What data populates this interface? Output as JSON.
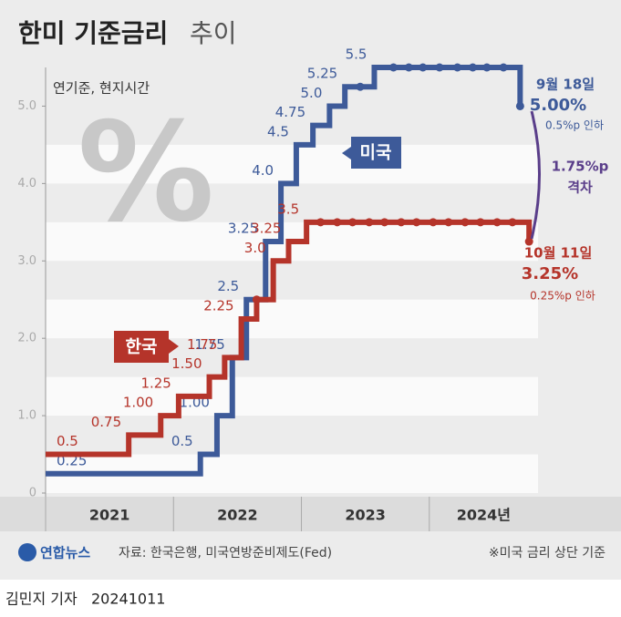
{
  "chart_data": {
    "type": "step",
    "title": "한미 기준금리",
    "title_suffix": "추이",
    "subtitle": "연기준, 현지시간",
    "watermark": "%",
    "xlim": [
      2021,
      2024.85
    ],
    "xticks": [
      2021,
      2022,
      2023,
      {
        "value": 2024,
        "label": "2024년"
      }
    ],
    "ylim": [
      0,
      5.5
    ],
    "yticks": [
      0,
      {
        "value": 1,
        "label": "1.0"
      },
      {
        "value": 2,
        "label": "2.0"
      },
      {
        "value": 3,
        "label": "3.0"
      },
      {
        "value": 4,
        "label": "4.0"
      },
      {
        "value": 5,
        "label": "5.0"
      }
    ],
    "series": [
      {
        "name": "미국",
        "color": "#3d5a99",
        "x": [
          2021,
          2022.21,
          2022.34,
          2022.46,
          2022.57,
          2022.72,
          2022.84,
          2022.96,
          2023.09,
          2023.22,
          2023.34,
          2023.46,
          2023.57,
          2023.72,
          2023.84,
          2023.95,
          2024.08,
          2024.22,
          2024.34,
          2024.45,
          2024.58,
          2024.71
        ],
        "values": [
          0.25,
          0.5,
          1,
          1.75,
          2.5,
          3.25,
          4,
          4.5,
          4.75,
          5,
          5.25,
          5.25,
          5.5,
          5.5,
          5.5,
          5.5,
          5.5,
          5.5,
          5.5,
          5.5,
          5.5,
          5
        ],
        "value_labels": [
          "0.25",
          "0.5",
          "1.00",
          "1.75",
          "2.5",
          "3.25",
          "4.0",
          "4.5",
          "4.75",
          "5.0",
          "5.25",
          null,
          "5.5",
          null,
          null,
          null,
          null,
          null,
          null,
          null,
          null,
          null
        ]
      },
      {
        "name": "한국",
        "color": "#b5342a",
        "x": [
          2021,
          2021.65,
          2021.9,
          2022.04,
          2022.28,
          2022.4,
          2022.53,
          2022.65,
          2022.78,
          2022.9,
          2023.04,
          2023.15,
          2023.28,
          2023.4,
          2023.53,
          2023.65,
          2023.78,
          2023.9,
          2024.03,
          2024.15,
          2024.28,
          2024.4,
          2024.53,
          2024.65,
          2024.78
        ],
        "values": [
          0.5,
          0.75,
          1,
          1.25,
          1.5,
          1.75,
          2.25,
          2.5,
          3,
          3.25,
          3.5,
          3.5,
          3.5,
          3.5,
          3.5,
          3.5,
          3.5,
          3.5,
          3.5,
          3.5,
          3.5,
          3.5,
          3.5,
          3.5,
          3.25
        ],
        "value_labels": [
          "0.5",
          "0.75",
          "1.00",
          "1.25",
          "1.50",
          "1.75",
          "2.25",
          null,
          "3.0",
          "3.25",
          "3.5",
          null,
          null,
          null,
          null,
          null,
          null,
          null,
          null,
          null,
          null,
          null,
          null,
          null,
          null
        ]
      }
    ],
    "annotations": {
      "us_date": "9월 18일",
      "us_rate": "5.00%",
      "us_cut": "0.5%p 인하",
      "gap": "1.75%p",
      "gap_word": "격차",
      "kr_date": "10월 11일",
      "kr_rate": "3.25%",
      "kr_cut": "0.25%p 인하"
    },
    "logo": "연합뉴스",
    "source": "자료: 한국은행, 미국연방준비제도(Fed)",
    "note": "※미국 금리 상단 기준",
    "byline": "김민지 기자",
    "date": "20241011"
  }
}
